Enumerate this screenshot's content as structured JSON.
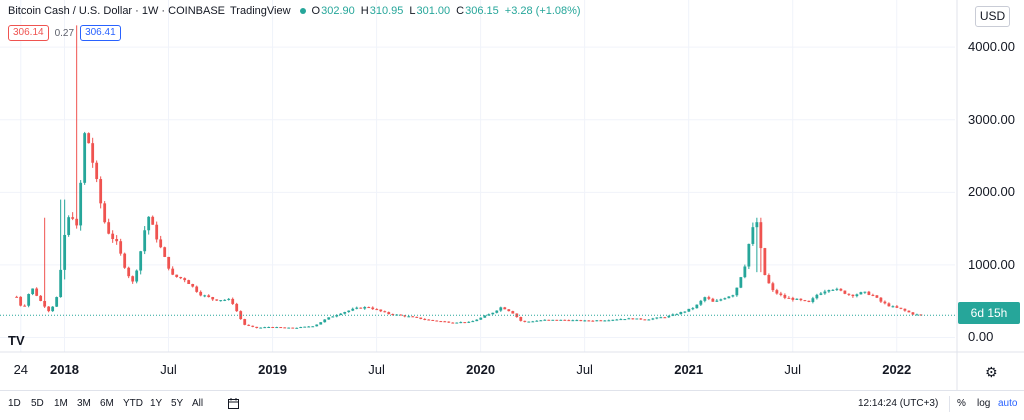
{
  "header": {
    "title": "Bitcoin Cash / U.S. Dollar · 1W · COINBASE",
    "source": "TradingView",
    "ohlc": [
      {
        "label": "O",
        "value": "302.90"
      },
      {
        "label": "H",
        "value": "310.95"
      },
      {
        "label": "L",
        "value": "301.00"
      },
      {
        "label": "C",
        "value": "306.15"
      }
    ],
    "change": "+3.28 (+1.08%)",
    "bid": "306.14",
    "spread": "0.27",
    "ask": "306.41"
  },
  "currency": "USD",
  "current_price_tag": "6d 15h",
  "logo": "TV",
  "colors": {
    "up": "#26a69a",
    "down": "#ef5350",
    "bid": "#ef5350",
    "ask": "#2962ff",
    "grid": "#f0f3fa"
  },
  "toolbar": {
    "timeframes": [
      "1D",
      "5D",
      "1M",
      "3M",
      "6M",
      "YTD",
      "1Y",
      "5Y",
      "All"
    ],
    "calendar_icon": "calendar-range-icon",
    "clock": "12:14:24 (UTC+3)",
    "percent": "%",
    "log": "log",
    "auto": "auto"
  },
  "settings_icon": "gear-icon",
  "chart_data": {
    "type": "candlestick",
    "symbol": "Bitcoin Cash / U.S. Dollar",
    "interval": "1W",
    "exchange": "COINBASE",
    "y_ticks": [
      "0.00",
      "1000.00",
      "2000.00",
      "3000.00",
      "4000.00"
    ],
    "ylim": [
      -200,
      4650
    ],
    "x_ticks": [
      {
        "label": "24",
        "t": 2017.79,
        "bold": false
      },
      {
        "label": "2018",
        "t": 2018.0,
        "bold": true
      },
      {
        "label": "Jul",
        "t": 2018.5,
        "bold": false
      },
      {
        "label": "2019",
        "t": 2019.0,
        "bold": true
      },
      {
        "label": "Jul",
        "t": 2019.5,
        "bold": false
      },
      {
        "label": "2020",
        "t": 2020.0,
        "bold": true
      },
      {
        "label": "Jul",
        "t": 2020.5,
        "bold": false
      },
      {
        "label": "2021",
        "t": 2021.0,
        "bold": true
      },
      {
        "label": "Jul",
        "t": 2021.5,
        "bold": false
      },
      {
        "label": "2022",
        "t": 2022.0,
        "bold": true
      }
    ],
    "price_path": [
      [
        2017.77,
        560
      ],
      [
        2017.8,
        380
      ],
      [
        2017.84,
        700
      ],
      [
        2017.88,
        520
      ],
      [
        2017.93,
        350
      ],
      [
        2017.97,
        600
      ],
      [
        2018.0,
        1400
      ],
      [
        2018.03,
        1750
      ],
      [
        2018.06,
        1500
      ],
      [
        2018.1,
        2900
      ],
      [
        2018.13,
        2500
      ],
      [
        2018.17,
        1900
      ],
      [
        2018.2,
        1500
      ],
      [
        2018.25,
        1300
      ],
      [
        2018.3,
        900
      ],
      [
        2018.33,
        750
      ],
      [
        2018.36,
        1100
      ],
      [
        2018.4,
        1700
      ],
      [
        2018.44,
        1400
      ],
      [
        2018.48,
        1100
      ],
      [
        2018.52,
        850
      ],
      [
        2018.58,
        800
      ],
      [
        2018.65,
        600
      ],
      [
        2018.72,
        520
      ],
      [
        2018.8,
        520
      ],
      [
        2018.86,
        180
      ],
      [
        2018.92,
        130
      ],
      [
        2018.98,
        145
      ],
      [
        2019.1,
        130
      ],
      [
        2019.2,
        160
      ],
      [
        2019.26,
        260
      ],
      [
        2019.32,
        330
      ],
      [
        2019.4,
        400
      ],
      [
        2019.46,
        420
      ],
      [
        2019.55,
        330
      ],
      [
        2019.65,
        290
      ],
      [
        2019.75,
        240
      ],
      [
        2019.85,
        210
      ],
      [
        2019.95,
        210
      ],
      [
        2020.05,
        330
      ],
      [
        2020.1,
        420
      ],
      [
        2020.15,
        350
      ],
      [
        2020.2,
        210
      ],
      [
        2020.3,
        240
      ],
      [
        2020.4,
        240
      ],
      [
        2020.5,
        230
      ],
      [
        2020.6,
        240
      ],
      [
        2020.7,
        260
      ],
      [
        2020.8,
        250
      ],
      [
        2020.9,
        290
      ],
      [
        2020.98,
        360
      ],
      [
        2021.03,
        420
      ],
      [
        2021.08,
        560
      ],
      [
        2021.12,
        480
      ],
      [
        2021.18,
        560
      ],
      [
        2021.22,
        600
      ],
      [
        2021.27,
        1000
      ],
      [
        2021.3,
        1450
      ],
      [
        2021.33,
        1600
      ],
      [
        2021.36,
        900
      ],
      [
        2021.4,
        650
      ],
      [
        2021.46,
        550
      ],
      [
        2021.52,
        520
      ],
      [
        2021.58,
        480
      ],
      [
        2021.62,
        600
      ],
      [
        2021.68,
        680
      ],
      [
        2021.72,
        650
      ],
      [
        2021.78,
        580
      ],
      [
        2021.84,
        620
      ],
      [
        2021.88,
        590
      ],
      [
        2021.93,
        480
      ],
      [
        2021.97,
        430
      ],
      [
        2022.02,
        390
      ],
      [
        2022.08,
        320
      ],
      [
        2022.12,
        306
      ]
    ],
    "spikes": [
      {
        "t": 2018.06,
        "high": 4300,
        "low": 1500
      },
      {
        "t": 2017.9,
        "high": 1650,
        "low": 700
      },
      {
        "t": 2017.99,
        "high": 1900,
        "low": 800
      },
      {
        "t": 2021.34,
        "high": 1650,
        "low": 900
      }
    ],
    "last_price": 306.15
  }
}
